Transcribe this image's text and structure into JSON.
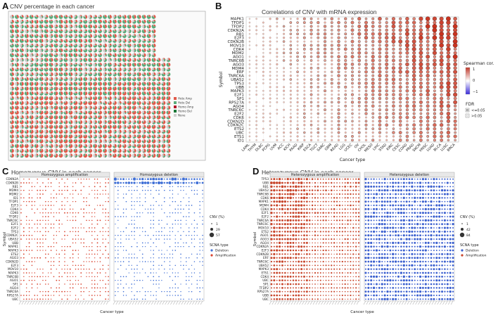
{
  "panels": {
    "A": {
      "label": "A",
      "title": "CNV percentage in each cancer"
    },
    "B": {
      "label": "B",
      "title": "Correlations of CNV with mRNA expression"
    },
    "C": {
      "label": "C",
      "title": "Homozygous CNV in each cancer"
    },
    "D": {
      "label": "D",
      "title": "Heterozygous CNV in each cancer"
    }
  },
  "chart_data": [
    {
      "type": "pie",
      "panel": "A",
      "title": "CNV percentage in each cancer",
      "legend": [
        "Hete Amp",
        "Hete Del",
        "Homo Amp",
        "Homo Del",
        "None"
      ],
      "colors": {
        "Hete Amp": "#e05a4b",
        "Hete Del": "#5aab7b",
        "Homo Amp": "#b2182b",
        "Homo Del": "#1b7837",
        "None": "#cfcfcf"
      },
      "rows": 30,
      "cols": 33
    },
    {
      "type": "scatter",
      "panel": "B",
      "title": "Correlations of CNV with mRNA expression",
      "xlabel": "Cancer type",
      "ylabel": "Symbol",
      "genes": [
        "MAPK1",
        "TFDP1",
        "TFDP2",
        "CDKN2A",
        "RB1",
        "E2F3",
        "CDKN2B",
        "MOV10",
        "CDK4",
        "MDM2",
        "AGO1",
        "TNRC6B",
        "AGO3",
        "MDM4",
        "ERF",
        "TNRC6A",
        "UBA52",
        "TP53",
        "UBB",
        "MAPK3",
        "E2F1",
        "SP1",
        "RPS27A",
        "AGO4",
        "TNRC6C",
        "E2F2",
        "CDK6",
        "CDKN2D",
        "CDKN2C",
        "ETS2",
        "UBC",
        "ETS1",
        "ID1"
      ],
      "cancers": [
        "LAML",
        "THYM",
        "DLBC",
        "PCPG",
        "UVM",
        "ACC",
        "KICH",
        "PAAD",
        "KIRP",
        "ESCA",
        "TGCT",
        "SARC",
        "GBM",
        "READ",
        "LGG",
        "UCEC",
        "OV",
        "CHOL",
        "MESO",
        "LIHC",
        "STAD",
        "KIRC",
        "CESC",
        "COAD",
        "PRAD",
        "SKCM",
        "HNSC",
        "LUAD",
        "BLCA",
        "LUSC",
        "BRCA"
      ],
      "legend": {
        "color_title": "Spearman cor.",
        "color_ticks": [
          "1",
          "0",
          "−1"
        ],
        "fdr_title": "FDR",
        "fdr_items": [
          "<=0.05",
          ">0.05"
        ]
      }
    },
    {
      "type": "scatter",
      "panel": "C",
      "title": "Homozygous CNV in each cancer",
      "facets": [
        "Homozygous amplification",
        "Homozygous deletion"
      ],
      "xlabel": "Cancer type",
      "ylabel": "Symbol",
      "genes": [
        "CDKN2A",
        "CDKN2B",
        "RB1",
        "MDM4",
        "MDM2",
        "ID1",
        "TFDP1",
        "E2F3",
        "CDK4",
        "CDK6",
        "TFDP2",
        "TNRC6C",
        "E2F1",
        "E2F2",
        "TP53",
        "CDKN2C",
        "UBA52",
        "UBB",
        "MAPK1",
        "MAPK3",
        "ETS2",
        "AGO3",
        "CDKN2D",
        "E2F3",
        "MOV10",
        "MAPK3",
        "TNRC6B",
        "AGO1",
        "SP1",
        "AGO4",
        "TNRC6A",
        "RPS27A",
        "UBC"
      ],
      "legend": {
        "size_title": "CNV (%)",
        "sizes": [
          "1",
          "29",
          "57"
        ],
        "type_title": "SCNA type",
        "types": [
          "Deletion",
          "Amplification"
        ]
      }
    },
    {
      "type": "scatter",
      "panel": "D",
      "title": "Heterozygous CNV in each cancer",
      "facets": [
        "Heterozygous amplification",
        "Heterozygous deletion"
      ],
      "xlabel": "Cancer type",
      "ylabel": "Symbol",
      "genes": [
        "TP53",
        "UBB",
        "RB1",
        "UBA52",
        "TNRC6B",
        "CDK6",
        "MAPK1",
        "MDM4",
        "CDK4",
        "E2F1",
        "E2F2",
        "TNRC6A",
        "TNRC6C",
        "MOV10",
        "ETS2",
        "AGO1",
        "AGO3",
        "AGO4",
        "CDKN2A",
        "E2F3",
        "CDKN2B",
        "ERF",
        "TNRC6C",
        "UBA52",
        "MAPK3",
        "ETS1",
        "CDK4",
        "UBC",
        "SP1",
        "TFDP2",
        "RPS27A",
        "UBB",
        "UBC"
      ],
      "legend": {
        "size_title": "CNV (%)",
        "sizes": [
          "1",
          "42",
          "84"
        ],
        "type_title": "SCNA type",
        "types": [
          "Deletion",
          "Amplification"
        ]
      }
    }
  ]
}
